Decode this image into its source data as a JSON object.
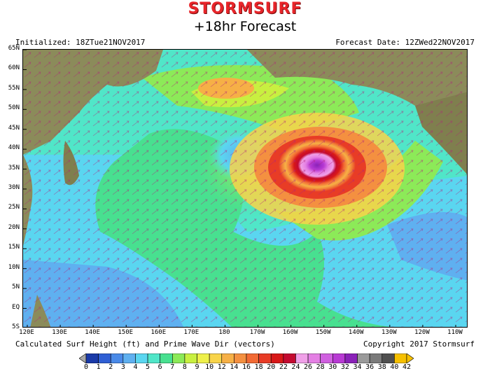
{
  "header": {
    "brand": "STORMSURF",
    "forecast_title": "+18hr Forecast",
    "initialized": "Initialized: 18ZTue21NOV2017",
    "forecast_date": "Forecast Date: 12ZWed22NOV2017"
  },
  "footer": {
    "caption": "Calculated Surf Height (ft) and Prime Wave Dir (vectors)",
    "copyright": "Copyright 2017 Stormsurf"
  },
  "map": {
    "lat_labels": [
      "65N",
      "60N",
      "55N",
      "50N",
      "45N",
      "40N",
      "35N",
      "30N",
      "25N",
      "20N",
      "15N",
      "10N",
      "5N",
      "EQ",
      "5S"
    ],
    "lon_labels": [
      "120E",
      "130E",
      "140E",
      "150E",
      "160E",
      "170E",
      "180",
      "170W",
      "160W",
      "150W",
      "140W",
      "130W",
      "120W",
      "110W"
    ],
    "storm_center": {
      "lat": 35,
      "lon": "150W"
    }
  },
  "legend": {
    "values": [
      "0",
      "1",
      "2",
      "3",
      "4",
      "5",
      "6",
      "7",
      "8",
      "9",
      "10",
      "12",
      "14",
      "16",
      "18",
      "20",
      "22",
      "24",
      "26",
      "28",
      "30",
      "32",
      "34",
      "36",
      "38",
      "40",
      "42"
    ],
    "colors": [
      "#a8a8a8",
      "#1a3aa8",
      "#2f5fd4",
      "#4a8ae8",
      "#5fb0f0",
      "#5ad6f0",
      "#50e6c8",
      "#48e090",
      "#8cea58",
      "#c8f040",
      "#eef04a",
      "#f8d44a",
      "#f6b046",
      "#f49040",
      "#f26a34",
      "#e83c26",
      "#d81818",
      "#c40a30",
      "#f0a0e8",
      "#e480e4",
      "#d060e0",
      "#b83ad4",
      "#8a22b8",
      "#9a9a9a",
      "#7a7a7a",
      "#505050",
      "#f6c000"
    ]
  }
}
